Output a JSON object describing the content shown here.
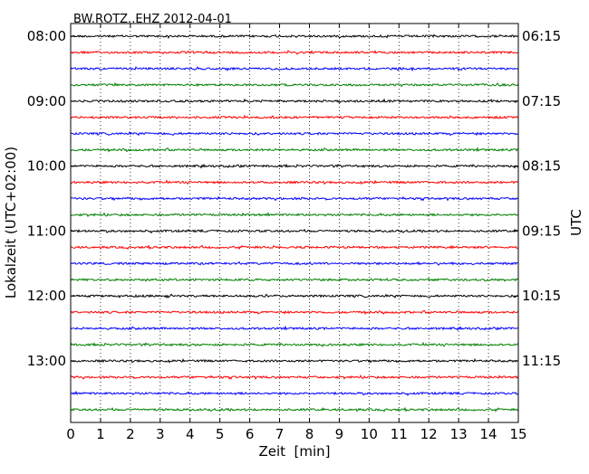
{
  "chart_data": {
    "type": "line",
    "title": "BW.ROTZ..EHZ 2012-04-01",
    "xlabel": "Zeit  [min]",
    "ylabel": "Lokalzeit (UTC+02:00)",
    "ylabel_right": "UTC",
    "xlim": [
      0,
      15
    ],
    "x_ticks": [
      "0",
      "1",
      "2",
      "3",
      "4",
      "5",
      "6",
      "7",
      "8",
      "9",
      "10",
      "11",
      "12",
      "13",
      "14",
      "15"
    ],
    "grid": "vertical dotted at each minute",
    "trace_interval_min": 15,
    "trace_start_times_local": [
      "08:00",
      "08:15",
      "08:30",
      "08:45",
      "09:00",
      "09:15",
      "09:30",
      "09:45",
      "10:00",
      "10:15",
      "10:30",
      "10:45",
      "11:00",
      "11:15",
      "11:30",
      "11:45",
      "12:00",
      "12:15",
      "12:30",
      "12:45",
      "13:00",
      "13:15",
      "13:30",
      "13:45"
    ],
    "trace_colors": [
      "#000000",
      "#ff0000",
      "#0000ff",
      "#008000"
    ],
    "left_tick_labels": [
      "08:00",
      "09:00",
      "10:00",
      "11:00",
      "12:00",
      "13:00"
    ],
    "right_tick_labels": [
      "06:15",
      "07:15",
      "08:15",
      "09:15",
      "10:15",
      "11:15"
    ]
  }
}
